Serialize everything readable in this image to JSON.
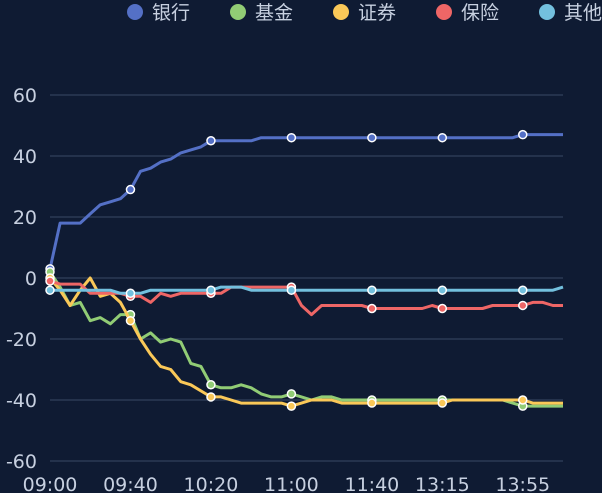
{
  "chart_data": {
    "type": "line",
    "title": "",
    "xlabel": "",
    "ylabel": "",
    "ylim": [
      -60,
      60
    ],
    "yticks": [
      60,
      40,
      20,
      0,
      -20,
      -40,
      -60
    ],
    "grid": true,
    "legend_position": "top",
    "x_tick_labels": [
      "09:00",
      "09:40",
      "10:20",
      "11:00",
      "11:40",
      "13:15",
      "13:55"
    ],
    "x": [
      "09:00",
      "09:05",
      "09:10",
      "09:15",
      "09:20",
      "09:25",
      "09:30",
      "09:35",
      "09:40",
      "09:45",
      "09:50",
      "09:55",
      "10:00",
      "10:05",
      "10:10",
      "10:15",
      "10:20",
      "10:25",
      "10:30",
      "10:35",
      "10:40",
      "10:45",
      "10:50",
      "10:55",
      "11:00",
      "11:05",
      "11:10",
      "11:15",
      "11:20",
      "11:25",
      "11:30",
      "11:35",
      "11:40",
      "11:45",
      "11:50",
      "11:55",
      "13:00",
      "13:05",
      "13:10",
      "13:15",
      "13:20",
      "13:25",
      "13:30",
      "13:35",
      "13:40",
      "13:45",
      "13:50",
      "13:55",
      "14:00",
      "14:05",
      "14:10",
      "14:15"
    ],
    "series": [
      {
        "name": "银行",
        "color": "#5470c6",
        "values": [
          3,
          18,
          18,
          18,
          21,
          24,
          25,
          26,
          29,
          35,
          36,
          38,
          39,
          41,
          42,
          43,
          45,
          45,
          45,
          45,
          45,
          46,
          46,
          46,
          46,
          46,
          46,
          46,
          46,
          46,
          46,
          46,
          46,
          46,
          46,
          46,
          46,
          46,
          46,
          46,
          46,
          46,
          46,
          46,
          46,
          46,
          46,
          47,
          47,
          47,
          47,
          47
        ]
      },
      {
        "name": "基金",
        "color": "#91cc75",
        "values": [
          2,
          -3,
          -9,
          -8,
          -14,
          -13,
          -15,
          -12,
          -12,
          -20,
          -18,
          -21,
          -20,
          -21,
          -28,
          -29,
          -35,
          -36,
          -36,
          -35,
          -36,
          -38,
          -39,
          -39,
          -38,
          -39,
          -40,
          -39,
          -39,
          -40,
          -40,
          -40,
          -40,
          -40,
          -40,
          -40,
          -40,
          -40,
          -40,
          -40,
          -40,
          -40,
          -40,
          -40,
          -40,
          -40,
          -41,
          -42,
          -42,
          -42,
          -42,
          -42
        ]
      },
      {
        "name": "证券",
        "color": "#fac858",
        "values": [
          0,
          -4,
          -9,
          -4,
          0,
          -6,
          -5,
          -8,
          -14,
          -20,
          -25,
          -29,
          -30,
          -34,
          -35,
          -37,
          -39,
          -39,
          -40,
          -41,
          -41,
          -41,
          -41,
          -41,
          -42,
          -41,
          -40,
          -40,
          -40,
          -41,
          -41,
          -41,
          -41,
          -41,
          -41,
          -41,
          -41,
          -41,
          -41,
          -41,
          -40,
          -40,
          -40,
          -40,
          -40,
          -40,
          -40,
          -40,
          -41,
          -41,
          -41,
          -41
        ]
      },
      {
        "name": "保险",
        "color": "#ee6666",
        "values": [
          -1,
          -2,
          -2,
          -2,
          -5,
          -5,
          -5,
          -5,
          -6,
          -6,
          -8,
          -5,
          -6,
          -5,
          -5,
          -5,
          -5,
          -5,
          -3,
          -3,
          -3,
          -3,
          -3,
          -3,
          -3,
          -9,
          -12,
          -9,
          -9,
          -9,
          -9,
          -9,
          -10,
          -10,
          -10,
          -10,
          -10,
          -10,
          -9,
          -10,
          -10,
          -10,
          -10,
          -10,
          -9,
          -9,
          -9,
          -9,
          -8,
          -8,
          -9,
          -9
        ]
      },
      {
        "name": "其他",
        "color": "#73c0de",
        "values": [
          -4,
          -4,
          -4,
          -4,
          -4,
          -4,
          -4,
          -5,
          -5,
          -5,
          -4,
          -4,
          -4,
          -4,
          -4,
          -4,
          -4,
          -3,
          -3,
          -3,
          -4,
          -4,
          -4,
          -4,
          -4,
          -4,
          -4,
          -4,
          -4,
          -4,
          -4,
          -4,
          -4,
          -4,
          -4,
          -4,
          -4,
          -4,
          -4,
          -4,
          -4,
          -4,
          -4,
          -4,
          -4,
          -4,
          -4,
          -4,
          -4,
          -4,
          -4,
          -3
        ]
      }
    ]
  }
}
